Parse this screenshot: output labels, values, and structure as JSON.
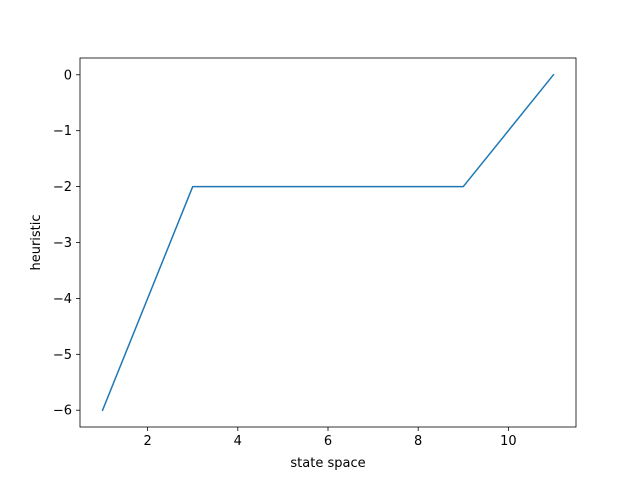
{
  "chart_data": {
    "type": "line",
    "title": "",
    "xlabel": "state space",
    "ylabel": "heuristic",
    "xlim": [
      0.5,
      11.5
    ],
    "ylim": [
      -6.3,
      0.3
    ],
    "xticks": [
      2,
      4,
      6,
      8,
      10
    ],
    "yticks": [
      0,
      -1,
      -2,
      -3,
      -4,
      -5,
      -6
    ],
    "xtick_labels": [
      "2",
      "4",
      "6",
      "8",
      "10"
    ],
    "ytick_labels": [
      "0",
      "−1",
      "−2",
      "−3",
      "−4",
      "−5",
      "−6"
    ],
    "grid": false,
    "series": [
      {
        "color": "#1f77b4",
        "x": [
          1,
          3,
          9,
          11
        ],
        "y": [
          -6,
          -2,
          -2,
          0
        ]
      }
    ]
  }
}
